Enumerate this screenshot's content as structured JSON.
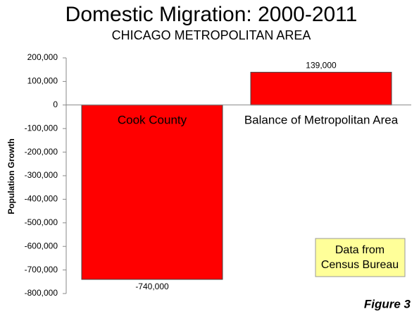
{
  "chart_data": {
    "type": "bar",
    "title": "Domestic Migration: 2000-2011",
    "subtitle": "CHICAGO METROPOLITAN AREA",
    "y_label": "Population Growth",
    "categories": [
      "Cook County",
      "Balance of Metropolitan Area"
    ],
    "values": [
      -740000,
      139000
    ],
    "value_labels": [
      "-740,000",
      "139,000"
    ],
    "color": "#ff0000",
    "ylim": [
      -800000,
      200000
    ],
    "yticks": [
      {
        "value": -800000,
        "label": "-800,000"
      },
      {
        "value": -700000,
        "label": "-700,000"
      },
      {
        "value": -600000,
        "label": "-600,000"
      },
      {
        "value": -500000,
        "label": "-500,000"
      },
      {
        "value": -400000,
        "label": "-400,000"
      },
      {
        "value": -300000,
        "label": "-300,000"
      },
      {
        "value": -200000,
        "label": "-200,000"
      },
      {
        "value": -100000,
        "label": "-100,000"
      },
      0,
      {
        "value": 100000,
        "label": "100,000"
      },
      {
        "value": 200000,
        "label": "200,000"
      }
    ],
    "grid": false,
    "annotation": [
      "Data from",
      "Census Bureau"
    ],
    "footer": "Figure 3"
  }
}
